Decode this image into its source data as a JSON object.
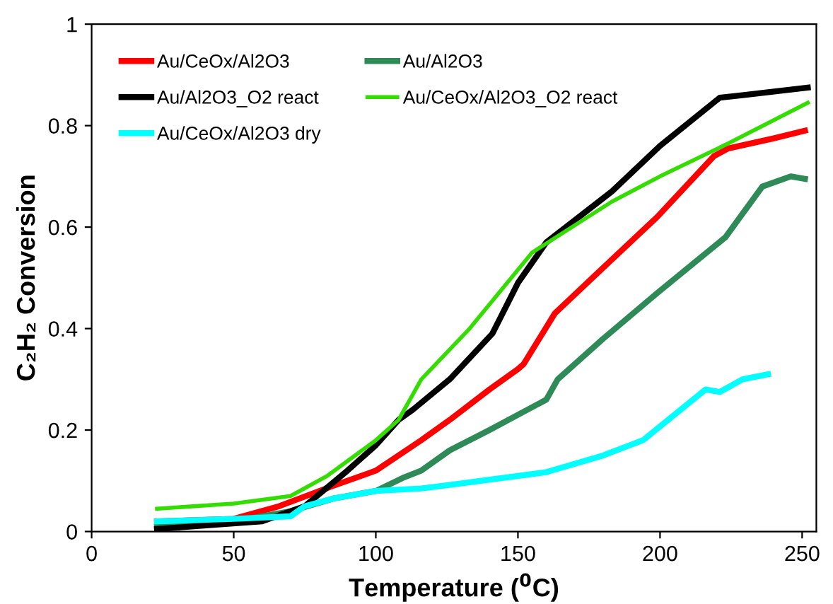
{
  "chart_data": {
    "type": "line",
    "xlabel": "Temperature ($^{0}$C)",
    "ylabel": "C₂H₂ Conversion",
    "xlim": [
      0,
      255
    ],
    "xticks": [
      0,
      50,
      100,
      150,
      200,
      250
    ],
    "ylim": [
      0,
      1
    ],
    "yticks": [
      0,
      0.2,
      0.4,
      0.6,
      0.8,
      1
    ],
    "grid": false,
    "legend": "top left",
    "marker": "none",
    "line_style": "solid",
    "series": [
      {
        "name": "Au/CeOx/Al2O3",
        "color": "#ff0000",
        "x": [
          23,
          50,
          66,
          85,
          100,
          116,
          126,
          140,
          150,
          152,
          163,
          180,
          199,
          219,
          224,
          240,
          251
        ],
        "values": [
          0.02,
          0.025,
          0.05,
          0.09,
          0.12,
          0.18,
          0.22,
          0.28,
          0.32,
          0.33,
          0.43,
          0.52,
          0.62,
          0.74,
          0.755,
          0.775,
          0.79
        ]
      },
      {
        "name": "Au/Al2O3",
        "color": "#2e8b57",
        "x": [
          23,
          50,
          70,
          85,
          100,
          110,
          116,
          126,
          140,
          160,
          164,
          180,
          199,
          223,
          236,
          246,
          251
        ],
        "values": [
          0.01,
          0.02,
          0.04,
          0.065,
          0.08,
          0.107,
          0.12,
          0.16,
          0.2,
          0.26,
          0.3,
          0.38,
          0.47,
          0.58,
          0.68,
          0.7,
          0.695
        ]
      },
      {
        "name": "Au/Al2O3_O2 react",
        "color": "#000000",
        "x": [
          23,
          60,
          75,
          90,
          100,
          108,
          113,
          126,
          141,
          150,
          160,
          183,
          200,
          221,
          229,
          252
        ],
        "values": [
          0.005,
          0.02,
          0.05,
          0.12,
          0.17,
          0.22,
          0.24,
          0.3,
          0.39,
          0.49,
          0.57,
          0.67,
          0.76,
          0.855,
          0.86,
          0.875
        ]
      },
      {
        "name": "Au/CeOx/Al2O3_O2 react",
        "color": "#33dd00",
        "x": [
          23,
          50,
          70,
          83,
          100,
          108,
          116,
          133,
          155,
          183,
          200,
          224,
          252
        ],
        "values": [
          0.045,
          0.055,
          0.07,
          0.11,
          0.18,
          0.22,
          0.3,
          0.4,
          0.55,
          0.65,
          0.7,
          0.765,
          0.845
        ]
      },
      {
        "name": "Au/CeOx/Al2O3 dry",
        "color": "#00ffff",
        "x": [
          23,
          50,
          70,
          75,
          85,
          100,
          116,
          126,
          160,
          180,
          194,
          216,
          221,
          229,
          238
        ],
        "values": [
          0.02,
          0.025,
          0.03,
          0.05,
          0.065,
          0.08,
          0.085,
          0.092,
          0.117,
          0.15,
          0.18,
          0.28,
          0.275,
          0.3,
          0.31
        ]
      }
    ]
  }
}
